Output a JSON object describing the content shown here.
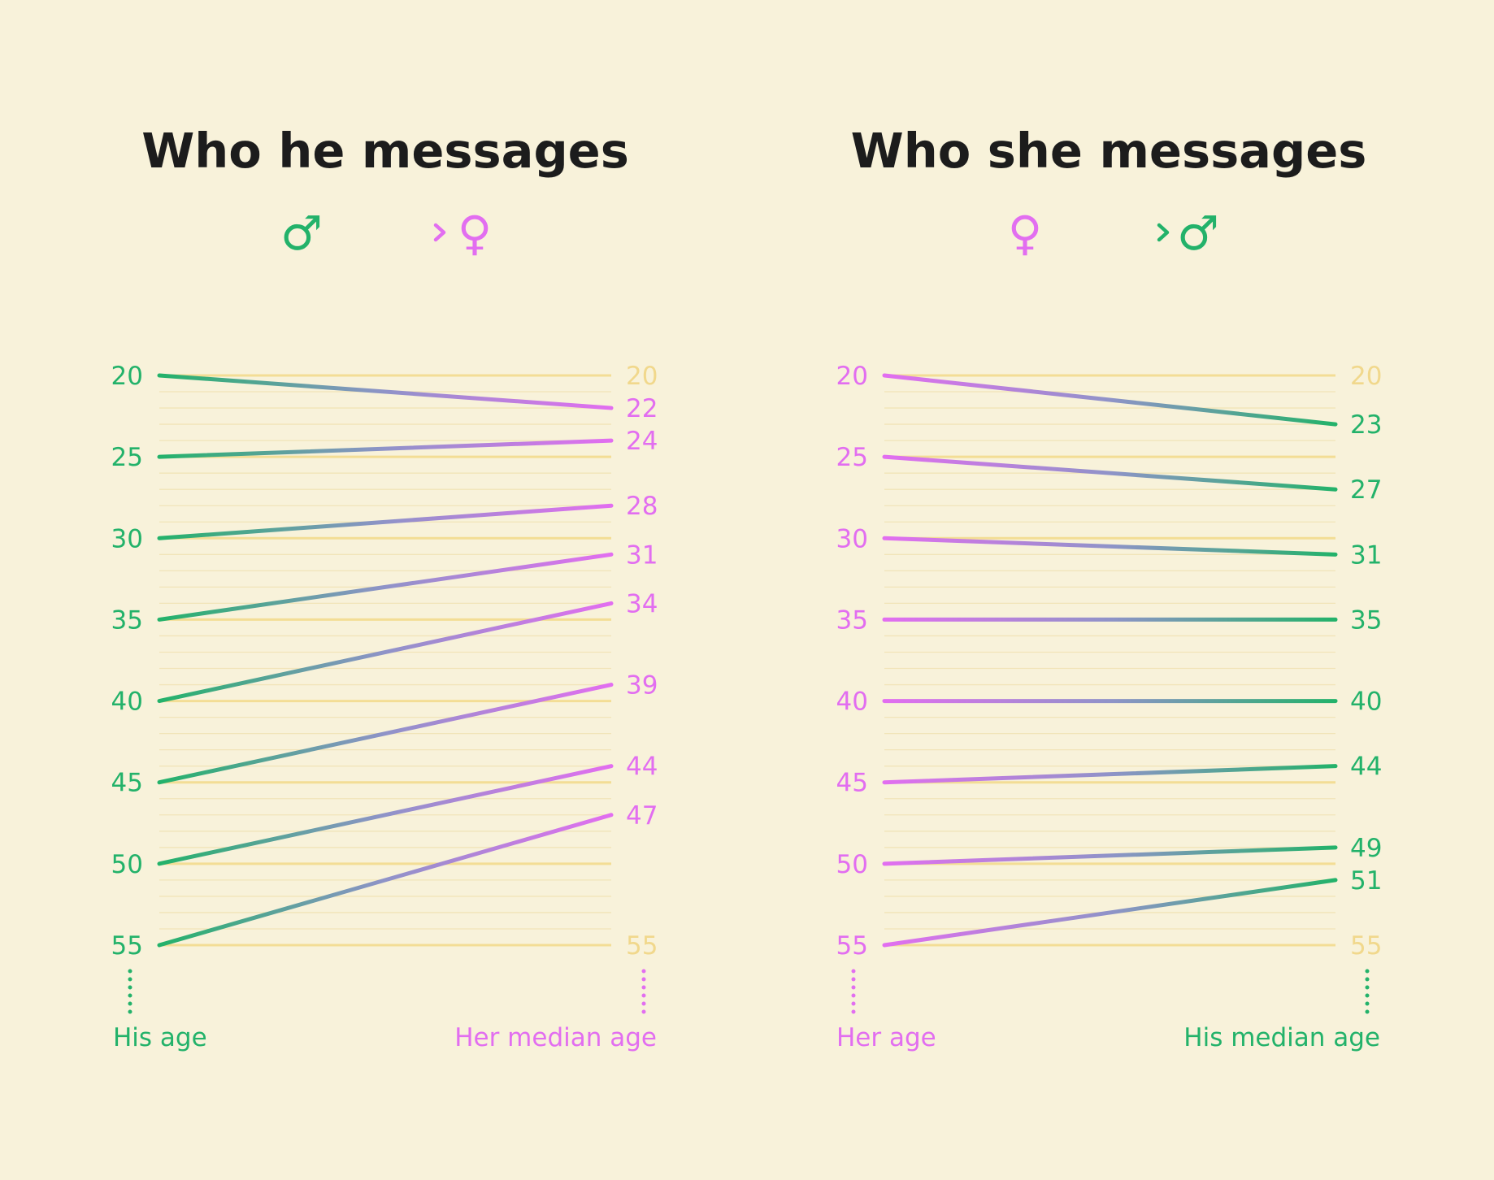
{
  "colors": {
    "male": "#23b26a",
    "female": "#e26ef0",
    "grid": "#f3dd95",
    "grid_minor": "#f1e4b8",
    "muted_tick": "#f1d88c",
    "background": "#f8f2da",
    "title": "#1c1c1c"
  },
  "chart_data": [
    {
      "type": "line",
      "title": "Who he messages",
      "direction": {
        "from_symbol": "♂",
        "to_symbol": "♀",
        "from": "male",
        "to": "female"
      },
      "ylim": [
        20,
        55
      ],
      "left_ticks": [
        "20",
        "25",
        "30",
        "35",
        "40",
        "45",
        "50",
        "55"
      ],
      "right_end_ticks": [
        "20",
        "55"
      ],
      "xlabel_left": "His age",
      "xlabel_right": "Her median age",
      "series": [
        {
          "left": 20,
          "right": 22
        },
        {
          "left": 25,
          "right": 24
        },
        {
          "left": 30,
          "right": 28
        },
        {
          "left": 35,
          "right": 31
        },
        {
          "left": 40,
          "right": 34
        },
        {
          "left": 45,
          "right": 39
        },
        {
          "left": 50,
          "right": 44
        },
        {
          "left": 55,
          "right": 47
        }
      ]
    },
    {
      "type": "line",
      "title": "Who she messages",
      "direction": {
        "from_symbol": "♀",
        "to_symbol": "♂",
        "from": "female",
        "to": "male"
      },
      "ylim": [
        20,
        55
      ],
      "left_ticks": [
        "20",
        "25",
        "30",
        "35",
        "40",
        "45",
        "50",
        "55"
      ],
      "right_end_ticks": [
        "20",
        "55"
      ],
      "xlabel_left": "Her age",
      "xlabel_right": "His median age",
      "series": [
        {
          "left": 20,
          "right": 23
        },
        {
          "left": 25,
          "right": 27
        },
        {
          "left": 30,
          "right": 31
        },
        {
          "left": 35,
          "right": 35
        },
        {
          "left": 40,
          "right": 40
        },
        {
          "left": 45,
          "right": 44
        },
        {
          "left": 50,
          "right": 49
        },
        {
          "left": 55,
          "right": 51
        }
      ]
    }
  ]
}
